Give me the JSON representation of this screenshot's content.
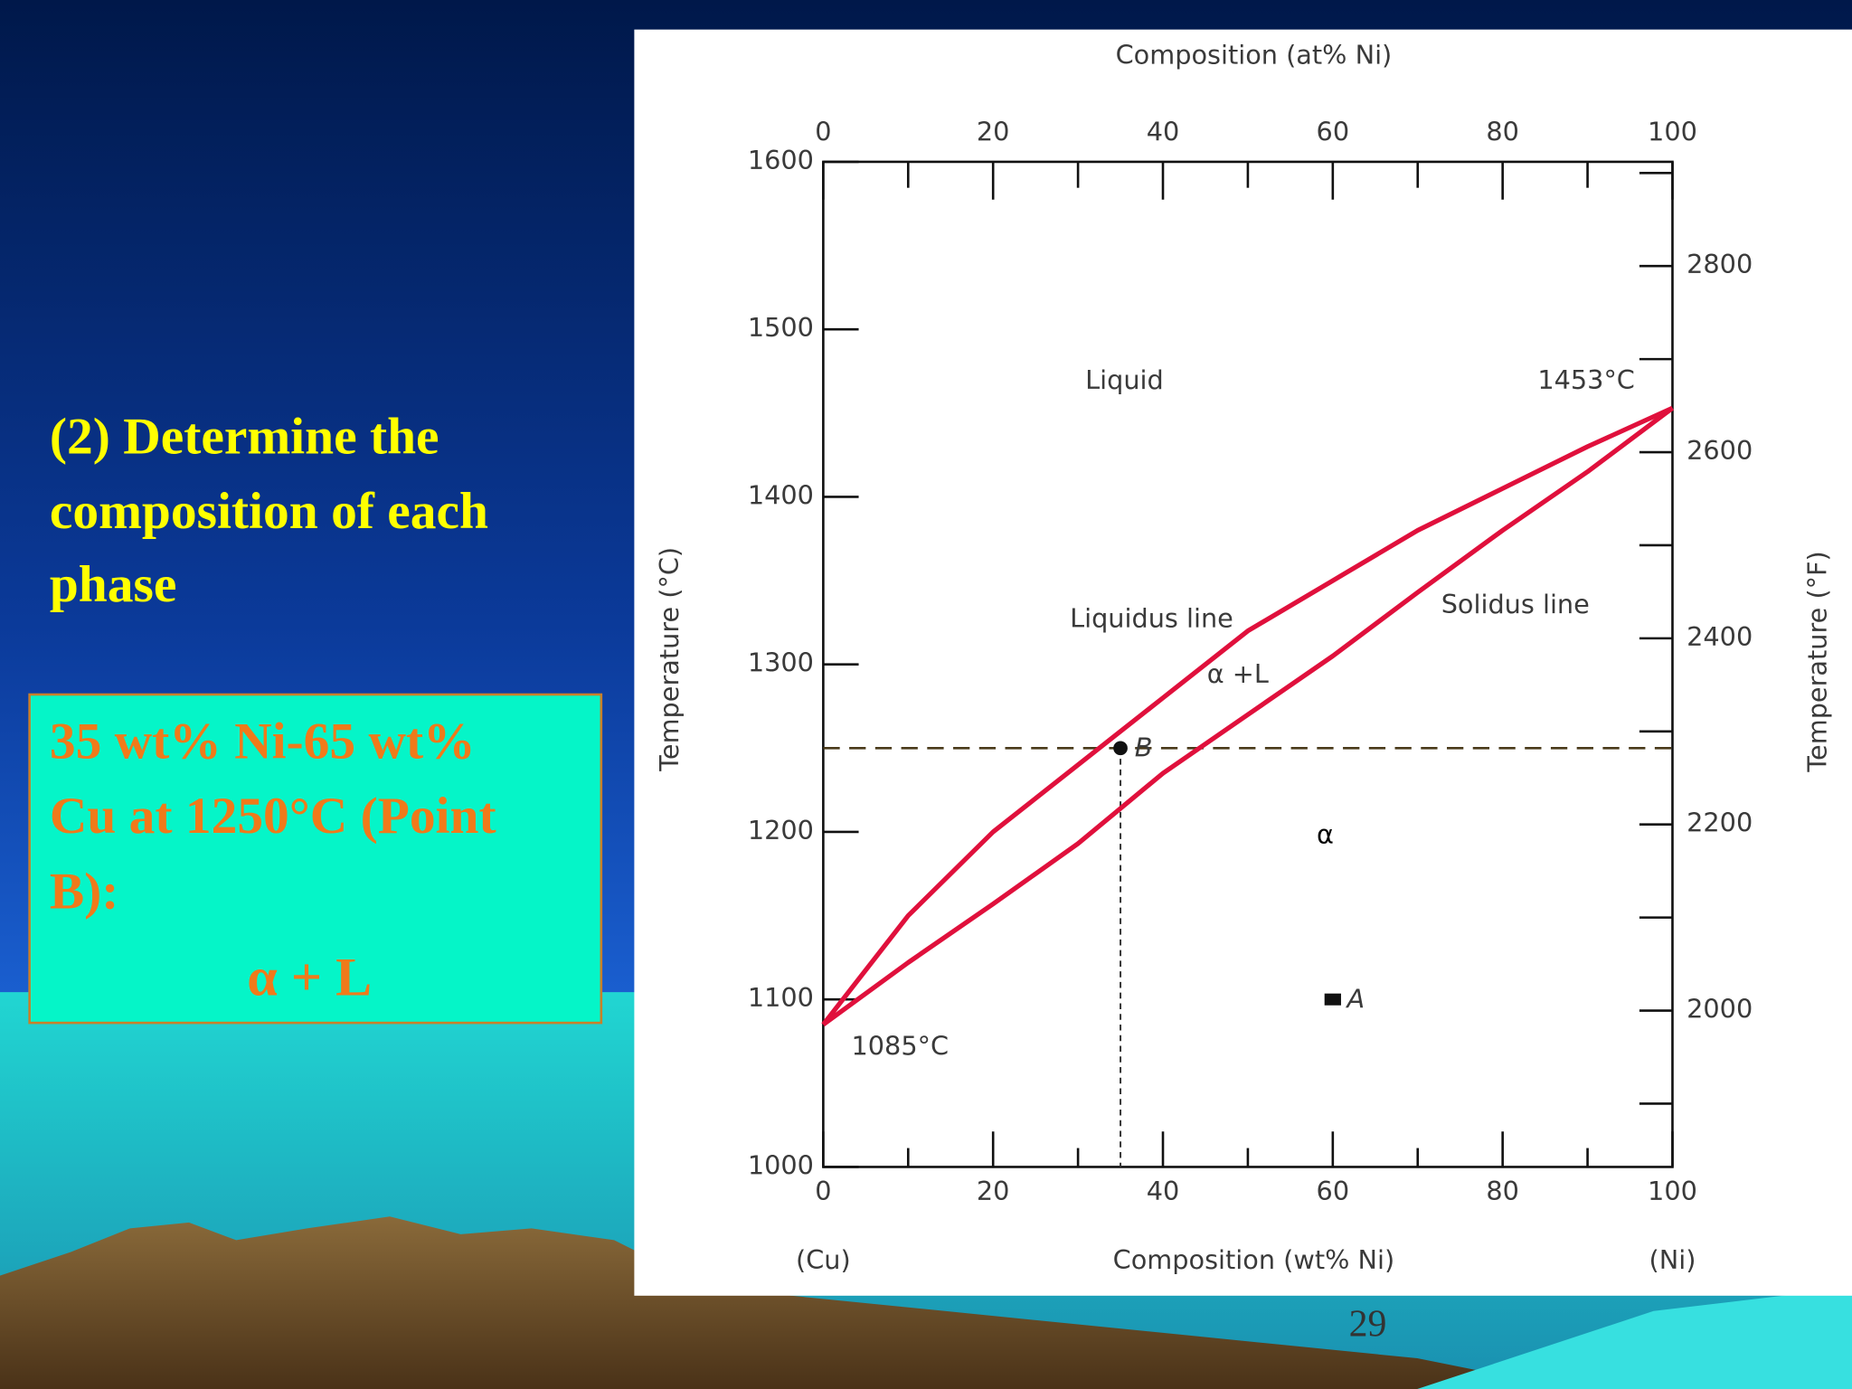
{
  "slide": {
    "title_lines": [
      "(2) Determine the",
      "composition of each",
      "phase"
    ],
    "box_lines": [
      "35 wt% Ni-65 wt%",
      "Cu at 1250°C (Point",
      "B):"
    ],
    "box_phase": "α + L",
    "page_number": "29"
  },
  "chart_data": {
    "type": "line",
    "x_label": "Composition (wt% Ni)",
    "x2_label": "Composition (at% Ni)",
    "x_end_labels": [
      "(Cu)",
      "(Ni)"
    ],
    "y_label": "Temperature (°C)",
    "y2_label": "Temperature (°F)",
    "x": [
      0,
      10,
      20,
      30,
      40,
      50,
      60,
      70,
      80,
      90,
      100
    ],
    "series": [
      {
        "name": "Liquidus line",
        "color": "#e0103c",
        "values": [
          1085,
          1150,
          1200,
          1240,
          1280,
          1320,
          1350,
          1380,
          1405,
          1430,
          1453
        ]
      },
      {
        "name": "Solidus line",
        "color": "#e0103c",
        "values": [
          1085,
          1122,
          1157,
          1193,
          1235,
          1270,
          1305,
          1343,
          1380,
          1415,
          1453
        ]
      }
    ],
    "xlim": [
      0,
      100
    ],
    "xticks": [
      0,
      20,
      40,
      60,
      80,
      100
    ],
    "x_minor_ticks": [
      10,
      30,
      50,
      70,
      90
    ],
    "x2lim": [
      0,
      100
    ],
    "x2ticks": [
      0,
      20,
      40,
      60,
      80,
      100
    ],
    "x2_minor_ticks": [
      10,
      30,
      50,
      70,
      90
    ],
    "ylim": [
      1000,
      1600
    ],
    "yticks": [
      1000,
      1100,
      1200,
      1300,
      1400,
      1500,
      1600
    ],
    "y2lim": [
      1832,
      2912
    ],
    "y2ticks": [
      2000,
      2200,
      2400,
      2600,
      2800
    ],
    "y2_minor_ticks": [
      1900,
      2100,
      2300,
      2500,
      2700,
      2900
    ],
    "points": [
      {
        "label": "B",
        "x": 35,
        "y": 1250
      },
      {
        "label": "A",
        "x": 60,
        "y": 1100
      }
    ],
    "reference_line_y": 1250,
    "annotations": [
      "Liquid",
      "1453°C",
      "α +L",
      "α",
      "1085°C"
    ]
  }
}
